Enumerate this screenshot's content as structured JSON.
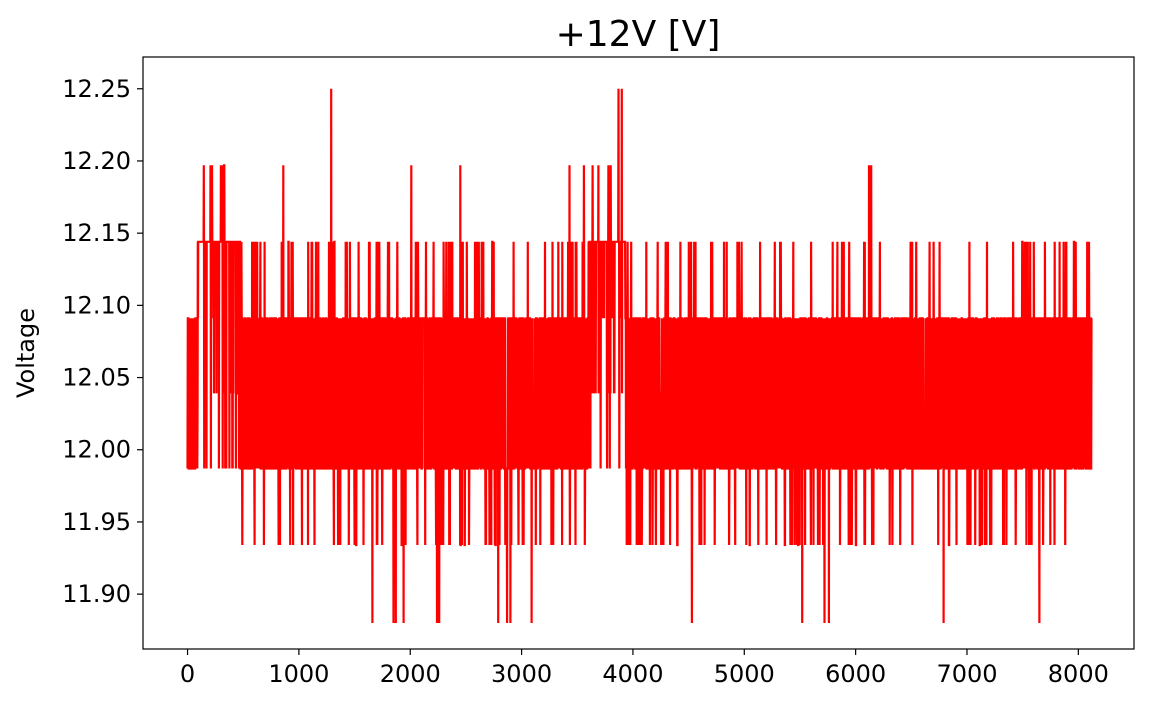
{
  "chart_data": {
    "type": "line",
    "title": "+12V [V]",
    "xlabel": "",
    "ylabel": "Voltage",
    "xlim": [
      -400,
      8500
    ],
    "ylim": [
      11.862,
      12.272
    ],
    "xticks": [
      0,
      1000,
      2000,
      3000,
      4000,
      5000,
      6000,
      7000,
      8000
    ],
    "xtick_labels": [
      "0",
      "1000",
      "2000",
      "3000",
      "4000",
      "5000",
      "6000",
      "7000",
      "8000"
    ],
    "yticks": [
      11.9,
      11.95,
      12.0,
      12.05,
      12.1,
      12.15,
      12.2,
      12.25
    ],
    "ytick_labels": [
      "11.90",
      "11.95",
      "12.00",
      "12.05",
      "12.10",
      "12.15",
      "12.20",
      "12.25"
    ],
    "grid": false,
    "legend": "none",
    "series": [
      {
        "color": "#ff0000",
        "x_range": [
          0,
          8120
        ],
        "levels": [
          11.88,
          11.934,
          11.987,
          12.039,
          12.091,
          12.144,
          12.197,
          12.25
        ],
        "segments": [
          {
            "x": [
              0,
              90
            ],
            "baseline": [
              11.987,
              12.091
            ],
            "alt": [
              12.039,
              12.144
            ]
          },
          {
            "x": [
              90,
              470
            ],
            "baseline": [
              12.144,
              12.144
            ],
            "alt": [
              12.091,
              12.197
            ]
          },
          {
            "x": [
              470,
              1300
            ],
            "baseline": [
              11.987,
              12.091
            ],
            "alt": [
              11.934,
              12.144
            ]
          },
          {
            "x": [
              1300,
              2400
            ],
            "baseline": [
              11.987,
              12.091
            ],
            "alt": [
              11.934,
              12.144
            ]
          },
          {
            "x": [
              2400,
              3600
            ],
            "baseline": [
              11.987,
              12.091
            ],
            "alt": [
              11.934,
              12.144
            ]
          },
          {
            "x": [
              3600,
              3930
            ],
            "baseline": [
              12.144,
              12.144
            ],
            "alt": [
              12.091,
              12.197
            ]
          },
          {
            "x": [
              3930,
              8120
            ],
            "baseline": [
              11.987,
              12.091
            ],
            "alt": [
              11.934,
              12.144
            ]
          }
        ],
        "spikes": [
          {
            "x": 1290,
            "y": 12.25
          },
          {
            "x": 3870,
            "y": 12.25
          },
          {
            "x": 3900,
            "y": 12.25
          },
          {
            "x": 220,
            "y": 12.197
          },
          {
            "x": 300,
            "y": 12.197
          },
          {
            "x": 330,
            "y": 12.197
          },
          {
            "x": 860,
            "y": 12.197
          },
          {
            "x": 2010,
            "y": 12.197
          },
          {
            "x": 2450,
            "y": 12.197
          },
          {
            "x": 3430,
            "y": 12.197
          },
          {
            "x": 3560,
            "y": 12.197
          },
          {
            "x": 3690,
            "y": 12.197
          },
          {
            "x": 3800,
            "y": 12.197
          },
          {
            "x": 6120,
            "y": 12.197
          },
          {
            "x": 6140,
            "y": 12.197
          },
          {
            "x": 1660,
            "y": 11.88
          },
          {
            "x": 1850,
            "y": 11.88
          },
          {
            "x": 1870,
            "y": 11.88
          },
          {
            "x": 1940,
            "y": 11.88
          },
          {
            "x": 2240,
            "y": 11.88
          },
          {
            "x": 2260,
            "y": 11.88
          },
          {
            "x": 2790,
            "y": 11.88
          },
          {
            "x": 2870,
            "y": 11.88
          },
          {
            "x": 2900,
            "y": 11.88
          },
          {
            "x": 3090,
            "y": 11.88
          },
          {
            "x": 4530,
            "y": 11.88
          },
          {
            "x": 5520,
            "y": 11.88
          },
          {
            "x": 5720,
            "y": 11.88
          },
          {
            "x": 5760,
            "y": 11.88
          },
          {
            "x": 6790,
            "y": 11.88
          },
          {
            "x": 7650,
            "y": 11.88
          }
        ]
      }
    ]
  }
}
